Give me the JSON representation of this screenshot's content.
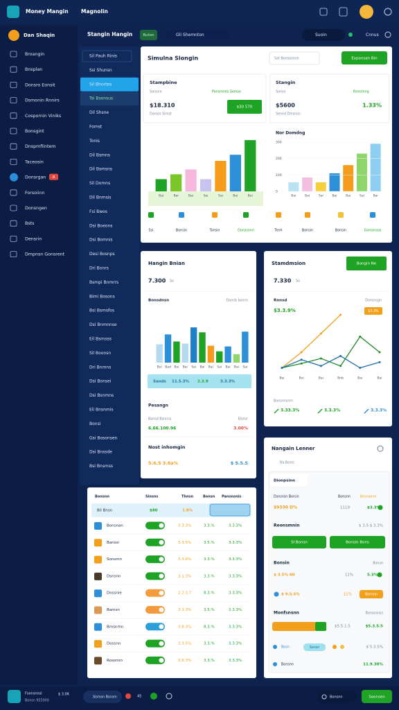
{
  "topbar": {
    "app": "Money Mangin",
    "section": "Magnolin"
  },
  "sidebar": {
    "profile": "Dan Shaqin",
    "badge": "8",
    "items": [
      "Broangin",
      "Bnsplan",
      "Donsro Eonsit",
      "Dsmonin Rnnirs",
      "Cospornin Viniks",
      "Bonsgint",
      "Dnspmfiintem",
      "Taceosin",
      "Donsrgan",
      "Forsoiinn",
      "Donsngen",
      "Bsts",
      "Densrin",
      "Dmpnsn Gonsrent"
    ]
  },
  "toolbar": {
    "title": "Stangin Hangin",
    "tabs": [
      "Buton",
      "Gli Shemnton"
    ],
    "search": "Suoin",
    "action": "Cnnus"
  },
  "subnav": {
    "items": [
      "Sil Pauh Rinis",
      "Ssi Shunsn",
      "Sil Bhortes",
      "Tsi Bsonsus",
      "Dil Shsne",
      "Fomst",
      "Tonis",
      "Dil Bsmns",
      "Dil Bsmsns",
      "Sil Domns",
      "Dil Bnmsis",
      "Fsi Bwos",
      "Dsi Boeons",
      "Dsi Bomnis",
      "Desi Bosnps",
      "Dri Bonrs",
      "Bsmpi Bnmrrs",
      "Bimi Bosons",
      "Bsi Bsmsfos",
      "Dsi Bnmnnse",
      "Eil Bsrnsss",
      "Sil Boonsn",
      "Dri Bnmns",
      "Dsi Bonsei",
      "Dsi Bsnmns",
      "Eli Bnsnmis",
      "Bonsi",
      "Gsi Bosonsen",
      "Dsi Bnssde",
      "Bsi Bnsmss"
    ]
  },
  "overview": {
    "title": "Simulna Slongin",
    "search": "Sat Bonsonnsn",
    "button": "Exponsan Bin",
    "kpis": [
      {
        "title": "Stampbine",
        "label": "Sansnn",
        "link": "Pansmnes Semsn",
        "value": "$18.310",
        "note": "Donsin Sirnst",
        "button": "$30 570"
      },
      {
        "title": "Stangin",
        "label": "Sonsn",
        "link": "Rnnsmng",
        "value": "$5600",
        "note": "Sennd Dlnsnsn",
        "change": "1.33%"
      }
    ],
    "chart1": {
      "categories": [
        "Bai",
        "Bai",
        "Bai",
        "Sai",
        "Sai",
        "Bai",
        "Bai"
      ],
      "values": [
        20,
        28,
        36,
        20,
        50,
        60,
        84
      ],
      "colors": [
        "#1fa324",
        "#7cc52a",
        "#f4b8dc",
        "#c9c3ef",
        "#f59c1c",
        "#2d8fd8",
        "#1fa324"
      ],
      "ylim": [
        0,
        100
      ]
    },
    "chart2": {
      "title": "Nor Domdng",
      "yticks": [
        0,
        100,
        200,
        300
      ],
      "ylim": [
        0,
        300
      ],
      "categories": [
        "Bai",
        "Bai",
        "Sai",
        "Bai",
        "Bai",
        "Sai",
        "Bai"
      ],
      "values": [
        55,
        85,
        55,
        110,
        160,
        230,
        290
      ],
      "colors": [
        "#b6e2f4",
        "#f4c0e2",
        "#f6cf3a",
        "#2d8fd8",
        "#f59c1c",
        "#8fd66a",
        "#8ccff0"
      ]
    },
    "legend1": [
      "Ssi",
      "Bonsin",
      "Tonsin",
      "Donssnnn"
    ],
    "legend2": [
      "Tenh",
      "Bonsin",
      "Bonsin",
      "Gonsinsos"
    ]
  },
  "activity": {
    "title": "Hangin Bnian",
    "value": "7.300",
    "unit": "So",
    "label": "Bonsdnsn",
    "side": "Donsb bonsn",
    "chart": {
      "categories": [
        "Bei",
        "Bad",
        "Boi",
        "Bai",
        "Sai",
        "Bai",
        "Bai",
        "Sai",
        "Bai",
        "Bai",
        "Sai"
      ],
      "values": [
        26,
        40,
        30,
        27,
        50,
        43,
        24,
        16,
        23,
        12,
        44
      ],
      "colors": [
        "#b6d9f0",
        "#2d8fd8",
        "#1fa324",
        "#b6d9f0",
        "#1f7fc4",
        "#1fa324",
        "#f59c1c",
        "#1fa324",
        "#2d8fd8",
        "#8fd66a",
        "#2d8fd8"
      ],
      "ylim": [
        0,
        60
      ]
    },
    "stats": [
      "Sands",
      "11.5.3%",
      "2.3.9",
      "3.3.3%"
    ],
    "section1": {
      "title": "Pesangn",
      "left": "Bansd Bsnnss",
      "right": "Elsnsr",
      "leftValue": "6.66.100.96",
      "rightValue": "3.00%"
    },
    "section2": {
      "title": "Nost inhomgin",
      "leftValue": "5.6.5 3.6a%",
      "rightValue": "$ 5.5.5"
    }
  },
  "trend": {
    "title": "Stamdmsion",
    "button": "Bongin Ne",
    "value": "7.330",
    "unit": "So",
    "label": "Rnnsd",
    "side": "Donsnsgn",
    "change": "$3.3.9%",
    "badge": "$3.3%",
    "chart": {
      "categories": [
        "Bai",
        "Boi",
        "Bai",
        "Bnb",
        "Bai",
        "Bai"
      ],
      "ylim": [
        0,
        100
      ],
      "series": [
        {
          "color": "#f2a01c",
          "values": [
            5,
            30,
            60,
            90,
            null,
            null
          ]
        },
        {
          "color": "#1e8a2a",
          "values": [
            5,
            12,
            20,
            8,
            55,
            30
          ]
        },
        {
          "color": "#1f6fa8",
          "values": [
            5,
            18,
            8,
            24,
            5,
            14
          ]
        }
      ]
    },
    "footer": "Bonsnnsnm",
    "stats": [
      "3.33.3%",
      "3.3.3%",
      "3.3.3%"
    ]
  },
  "table": {
    "columns": [
      "Bonsnn",
      "Sinsns",
      "Thnsn",
      "Bonsn",
      "Pansnsnis"
    ],
    "highlight": [
      "Bil Bnsn",
      "$80",
      "1.9%"
    ],
    "rows": [
      {
        "name": "Bonsnan",
        "status": "#1ea324",
        "c1": "3.3.3%",
        "c2": "3.3.%",
        "c3": "3.3.3%"
      },
      {
        "name": "Banssi",
        "status": "#1ea324",
        "c1": "3.3.5%",
        "c2": "3.5.%",
        "c3": "3.3.3%"
      },
      {
        "name": "Sonsmn",
        "status": "#1ea324",
        "c1": "3.3.6%",
        "c2": "3.3.%",
        "c3": "3.3.3%"
      },
      {
        "name": "Dsnsnn",
        "status": "#1ea324",
        "c1": "3.1.3%",
        "c2": "3.3.%",
        "c3": "3.3.3%"
      },
      {
        "name": "Dossnie",
        "status": "#f39a3c",
        "c1": "2.2.3.7",
        "c2": "8.3.%",
        "c3": "3.3.3%"
      },
      {
        "name": "Bamsn",
        "status": "#f39a3c",
        "c1": "3.3.3%",
        "c2": "3.5.%",
        "c3": "3.3.3%"
      },
      {
        "name": "Bmsnmn",
        "status": "#2d9fd8",
        "c1": "3.8.3%",
        "c2": "8.3.%",
        "c3": "3.3.3%"
      },
      {
        "name": "Dossnn",
        "status": "#1ea324",
        "c1": "3.3.5%",
        "c2": "3.3.%",
        "c3": "3.3.3%"
      },
      {
        "name": "Rosonsn",
        "status": "#1ea324",
        "c1": "3.6.3%",
        "c2": "3.3.%",
        "c3": "3.3.3%"
      }
    ]
  },
  "ledger": {
    "title": "Nangain Lenner",
    "subtitle": "Ra Bsnrc",
    "tab": "Dionpsinn",
    "heads": [
      "Dsnsnsn Bonsn",
      "Bonsnn",
      "Bnsnsenn"
    ],
    "values": [
      "$9330 D%",
      "1119",
      "$3.3%"
    ],
    "sectionA": {
      "title": "Reonsmnin",
      "value": "$ 3.5 $ 3.3%",
      "buttons": [
        "Sl Bonsn",
        "Bonsin Bons"
      ]
    },
    "sectionB": {
      "title": "Bonsin",
      "side": "Bonsn",
      "row1": [
        "$ 3.5% 60",
        "11%",
        "5.3%"
      ],
      "row2": [
        "$ 9.5.5%",
        "11%",
        "Bonsnn"
      ]
    },
    "sectionC": {
      "title": "Monfsnsnn",
      "side": "Bonsnsnss",
      "values": [
        "$5.5.1.5",
        "$5.3.5.5"
      ],
      "chips": [
        "Bosn",
        "Sonsn"
      ],
      "last": "$ 5.3.5%",
      "footLeft": "Bonsnn",
      "footRight": "11.9.30%"
    }
  },
  "bottombar": {
    "name": "Fsonsnnsi",
    "sub": "Bonsn 955000",
    "amount": "$ 3.0K",
    "pill": "Sismsn Bsnsm",
    "count": "45",
    "search": "Bonsnn",
    "button": "Soonsen"
  }
}
